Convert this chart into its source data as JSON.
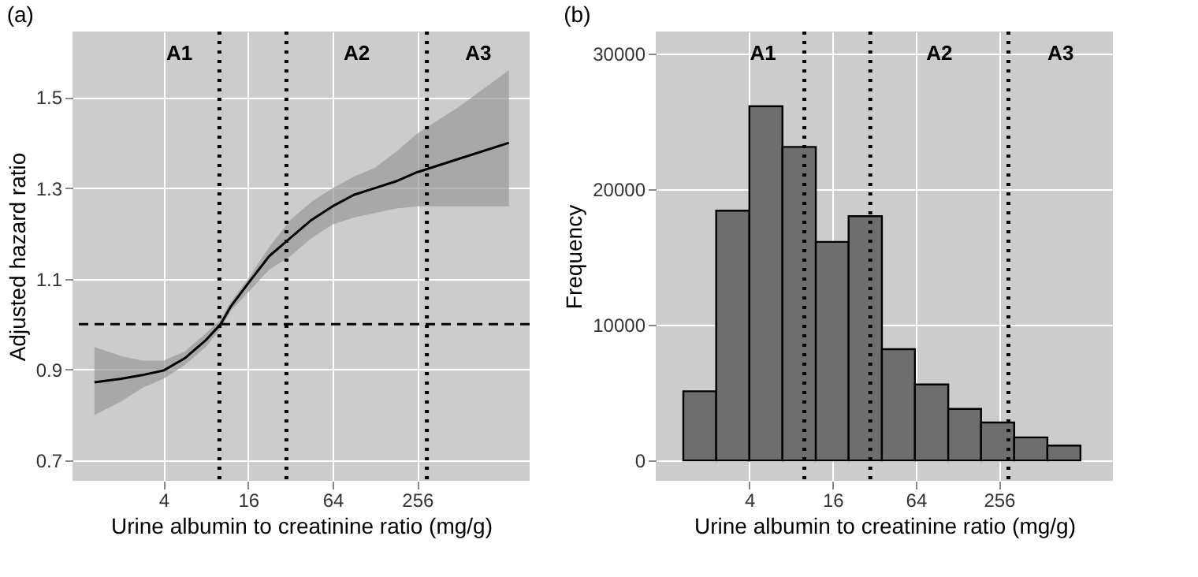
{
  "chart_data": [
    {
      "type": "line",
      "title": "(a)",
      "xlabel": "Urine albumin to creatinine ratio (mg/g)",
      "ylabel": "Adjusted hazard ratio",
      "log": "x",
      "x": [
        1.29,
        2,
        2.83,
        4,
        5.66,
        8,
        10.2,
        12.1,
        16,
        22.6,
        32,
        45.3,
        64,
        90.5,
        128,
        181,
        256,
        512,
        1152
      ],
      "series": [
        {
          "color": "#000000",
          "values": [
            0.872,
            0.88,
            0.888,
            0.898,
            0.925,
            0.965,
            1.0,
            1.04,
            1.09,
            1.15,
            1.19,
            1.23,
            1.26,
            1.285,
            1.3,
            1.315,
            1.335,
            1.365,
            1.4
          ],
          "lower": [
            0.8,
            0.83,
            0.86,
            0.88,
            0.91,
            0.95,
            0.99,
            1.03,
            1.07,
            1.12,
            1.15,
            1.19,
            1.22,
            1.235,
            1.245,
            1.255,
            1.26,
            1.26,
            1.26
          ],
          "upper": [
            0.95,
            0.93,
            0.92,
            0.92,
            0.94,
            0.98,
            1.01,
            1.05,
            1.1,
            1.17,
            1.23,
            1.27,
            1.3,
            1.325,
            1.345,
            1.38,
            1.42,
            1.48,
            1.56
          ]
        }
      ],
      "xlim": [
        0.9,
        1617
      ],
      "xticks": [
        4,
        16,
        64,
        256
      ],
      "ylim": [
        0.655,
        1.645
      ],
      "yticks": [
        0.7,
        0.9,
        1.1,
        1.3,
        1.5
      ],
      "grid": true,
      "ref_lines": [
        {
          "axis": "y",
          "value": 1.0,
          "line_style": "dashed"
        },
        {
          "axis": "x",
          "value": 10,
          "line_style": "dotted"
        },
        {
          "axis": "x",
          "value": 30,
          "line_style": "dotted"
        },
        {
          "axis": "x",
          "value": 300,
          "line_style": "dotted"
        }
      ],
      "annotations": [
        "A1",
        "A2",
        "A3"
      ]
    },
    {
      "type": "histogram",
      "title": "(b)",
      "xlabel": "Urine albumin to creatinine ratio (mg/g)",
      "ylabel": "Frequency",
      "log": "x",
      "color": "#6e6e6e",
      "bins": [
        1.33,
        2.3,
        4,
        6.94,
        12.1,
        20.9,
        36.4,
        63.1,
        110,
        190,
        330,
        574,
        996
      ],
      "values": [
        5100,
        18400,
        26100,
        23100,
        16100,
        18000,
        8200,
        5600,
        3800,
        2800,
        1700,
        1100
      ],
      "xlim": [
        0.84,
        1710
      ],
      "xticks": [
        4,
        16,
        64,
        256
      ],
      "ylim": [
        -1500,
        31600
      ],
      "yticks": [
        0,
        10000,
        20000,
        30000
      ],
      "grid": true,
      "ref_lines": [
        {
          "axis": "x",
          "value": 10,
          "line_style": "dotted"
        },
        {
          "axis": "x",
          "value": 30,
          "line_style": "dotted"
        },
        {
          "axis": "x",
          "value": 300,
          "line_style": "dotted"
        }
      ],
      "annotations": [
        "A1",
        "A2",
        "A3"
      ]
    }
  ]
}
